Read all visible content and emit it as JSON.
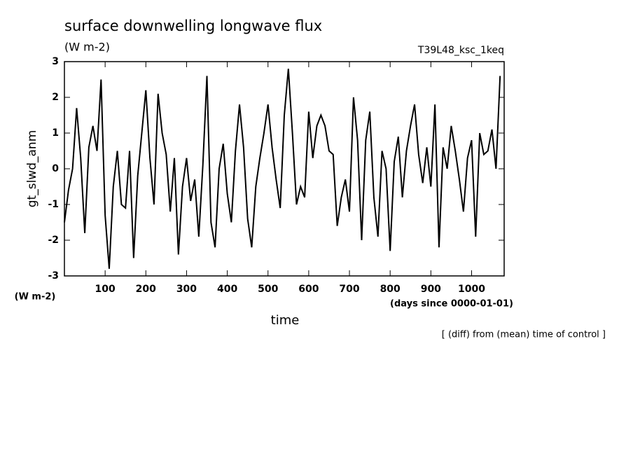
{
  "chart_data": {
    "type": "line",
    "title": "surface downwelling longwave flux",
    "units": "(W m-2)",
    "experiment": "T39L48_ksc_1keq",
    "y_label": "gt_slwd_anm",
    "y_units": "(W m-2)",
    "x_label": "time",
    "x_units": "(days since 0000-01-01)",
    "note": "[ (diff) from (mean) time of control ]",
    "color": "#000000",
    "xlim": [
      0,
      1080
    ],
    "xticks": [
      100,
      200,
      300,
      400,
      500,
      600,
      700,
      800,
      900,
      1000
    ],
    "ylim": [
      -3,
      3
    ],
    "yticks": [
      -3,
      -2,
      -1,
      0,
      1,
      2,
      3
    ],
    "x": [
      0,
      10,
      20,
      30,
      40,
      50,
      60,
      70,
      80,
      90,
      100,
      110,
      120,
      130,
      140,
      150,
      160,
      170,
      180,
      190,
      200,
      210,
      220,
      230,
      240,
      250,
      260,
      270,
      280,
      290,
      300,
      310,
      320,
      330,
      340,
      350,
      360,
      370,
      380,
      390,
      400,
      410,
      420,
      430,
      440,
      450,
      460,
      470,
      480,
      490,
      500,
      510,
      520,
      530,
      540,
      550,
      560,
      570,
      580,
      590,
      600,
      610,
      620,
      630,
      640,
      650,
      660,
      670,
      680,
      690,
      700,
      710,
      720,
      730,
      740,
      750,
      760,
      770,
      780,
      790,
      800,
      810,
      820,
      830,
      840,
      850,
      860,
      870,
      880,
      890,
      900,
      910,
      920,
      930,
      940,
      950,
      960,
      970,
      980,
      990,
      1000,
      1010,
      1020,
      1030,
      1040,
      1050,
      1060,
      1070
    ],
    "values": [
      -1.5,
      -0.6,
      0.0,
      1.7,
      0.3,
      -1.8,
      0.6,
      1.2,
      0.5,
      2.5,
      -1.3,
      -2.8,
      -0.5,
      0.5,
      -1.0,
      -1.1,
      0.5,
      -2.5,
      -0.2,
      1.0,
      2.2,
      0.3,
      -1.0,
      2.1,
      1.0,
      0.4,
      -1.2,
      0.3,
      -2.4,
      -0.5,
      0.3,
      -0.9,
      -0.3,
      -1.9,
      0.1,
      2.6,
      -1.5,
      -2.2,
      0.0,
      0.7,
      -0.7,
      -1.5,
      0.5,
      1.8,
      0.6,
      -1.4,
      -2.2,
      -0.5,
      0.3,
      1.0,
      1.8,
      0.6,
      -0.3,
      -1.1,
      1.5,
      2.8,
      1.0,
      -1.0,
      -0.5,
      -0.8,
      1.6,
      0.3,
      1.2,
      1.5,
      1.2,
      0.5,
      0.4,
      -1.6,
      -0.8,
      -0.3,
      -1.2,
      2.0,
      0.8,
      -2.0,
      0.8,
      1.6,
      -0.8,
      -1.9,
      0.5,
      0.0,
      -2.3,
      0.2,
      0.9,
      -0.8,
      0.5,
      1.2,
      1.8,
      0.4,
      -0.4,
      0.6,
      -0.5,
      1.8,
      -2.2,
      0.6,
      0.0,
      1.2,
      0.5,
      -0.3,
      -1.2,
      0.3,
      0.8,
      -1.9,
      1.0,
      0.4,
      0.5,
      1.1,
      0.0,
      2.6
    ]
  }
}
